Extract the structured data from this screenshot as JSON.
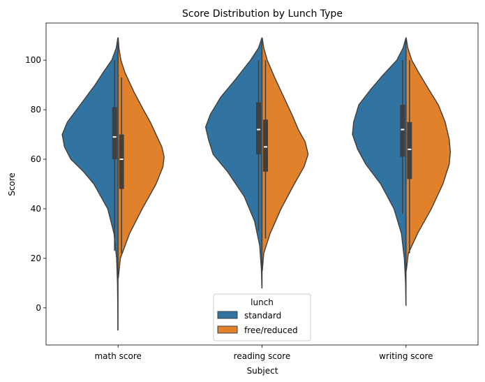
{
  "chart_data": {
    "type": "violin",
    "title": "Score Distribution by Lunch Type",
    "xlabel": "Subject",
    "ylabel": "Score",
    "categories": [
      "math score",
      "reading score",
      "writing score"
    ],
    "ylim": [
      -15,
      115
    ],
    "yticks": [
      0,
      20,
      40,
      60,
      80,
      100
    ],
    "split": true,
    "legend": {
      "title": "lunch",
      "placement": "lower-center"
    },
    "series": [
      {
        "name": "standard",
        "color": "#3274a1",
        "violins": [
          {
            "category": "math score",
            "extent": [
              -9,
              109
            ],
            "q1": 60,
            "median": 69,
            "q3": 81,
            "whisker": [
              23,
              100
            ],
            "profile": [
              [
                -9,
                0.004
              ],
              [
                0,
                0.005
              ],
              [
                10,
                0.01
              ],
              [
                20,
                0.025
              ],
              [
                30,
                0.07
              ],
              [
                40,
                0.18
              ],
              [
                50,
                0.42
              ],
              [
                55,
                0.6
              ],
              [
                60,
                0.82
              ],
              [
                65,
                0.93
              ],
              [
                70,
                0.97
              ],
              [
                75,
                0.88
              ],
              [
                80,
                0.72
              ],
              [
                85,
                0.56
              ],
              [
                90,
                0.4
              ],
              [
                95,
                0.26
              ],
              [
                100,
                0.11
              ],
              [
                105,
                0.03
              ],
              [
                109,
                0.004
              ]
            ]
          },
          {
            "category": "reading score",
            "extent": [
              8,
              109
            ],
            "q1": 62,
            "median": 72,
            "q3": 83,
            "whisker": [
              31,
              100
            ],
            "profile": [
              [
                8,
                0.003
              ],
              [
                15,
                0.01
              ],
              [
                25,
                0.04
              ],
              [
                35,
                0.13
              ],
              [
                45,
                0.31
              ],
              [
                55,
                0.6
              ],
              [
                62,
                0.85
              ],
              [
                68,
                0.93
              ],
              [
                73,
                0.98
              ],
              [
                78,
                0.9
              ],
              [
                85,
                0.72
              ],
              [
                92,
                0.47
              ],
              [
                100,
                0.2
              ],
              [
                105,
                0.06
              ],
              [
                109,
                0.003
              ]
            ]
          },
          {
            "category": "writing score",
            "extent": [
              1,
              109
            ],
            "q1": 61,
            "median": 72,
            "q3": 82,
            "whisker": [
              38,
              100
            ],
            "profile": [
              [
                1,
                0.002
              ],
              [
                10,
                0.008
              ],
              [
                20,
                0.03
              ],
              [
                30,
                0.08
              ],
              [
                40,
                0.21
              ],
              [
                50,
                0.44
              ],
              [
                58,
                0.7
              ],
              [
                64,
                0.84
              ],
              [
                70,
                0.93
              ],
              [
                75,
                0.91
              ],
              [
                82,
                0.82
              ],
              [
                88,
                0.62
              ],
              [
                94,
                0.4
              ],
              [
                100,
                0.16
              ],
              [
                105,
                0.05
              ],
              [
                109,
                0.002
              ]
            ]
          }
        ]
      },
      {
        "name": "free/reduced",
        "color": "#e1812c",
        "violins": [
          {
            "category": "math score",
            "extent": [
              12,
              109
            ],
            "q1": 48,
            "median": 60,
            "q3": 70,
            "whisker": [
              22,
              93
            ],
            "profile": [
              [
                12,
                0.005
              ],
              [
                20,
                0.04
              ],
              [
                30,
                0.2
              ],
              [
                40,
                0.42
              ],
              [
                50,
                0.66
              ],
              [
                57,
                0.78
              ],
              [
                61,
                0.8
              ],
              [
                65,
                0.76
              ],
              [
                70,
                0.66
              ],
              [
                75,
                0.56
              ],
              [
                80,
                0.44
              ],
              [
                87,
                0.28
              ],
              [
                95,
                0.12
              ],
              [
                100,
                0.05
              ],
              [
                105,
                0.015
              ],
              [
                109,
                0.003
              ]
            ]
          },
          {
            "category": "reading score",
            "extent": [
              15,
              109
            ],
            "q1": 55,
            "median": 65,
            "q3": 76,
            "whisker": [
              28,
              100
            ],
            "profile": [
              [
                15,
                0.005
              ],
              [
                22,
                0.03
              ],
              [
                30,
                0.14
              ],
              [
                40,
                0.33
              ],
              [
                50,
                0.56
              ],
              [
                57,
                0.73
              ],
              [
                62,
                0.8
              ],
              [
                67,
                0.75
              ],
              [
                72,
                0.63
              ],
              [
                78,
                0.52
              ],
              [
                85,
                0.38
              ],
              [
                93,
                0.22
              ],
              [
                100,
                0.09
              ],
              [
                105,
                0.03
              ],
              [
                109,
                0.003
              ]
            ]
          },
          {
            "category": "writing score",
            "extent": [
              15,
              109
            ],
            "q1": 52,
            "median": 64,
            "q3": 75,
            "whisker": [
              22,
              100
            ],
            "profile": [
              [
                15,
                0.005
              ],
              [
                22,
                0.04
              ],
              [
                30,
                0.2
              ],
              [
                40,
                0.44
              ],
              [
                50,
                0.64
              ],
              [
                58,
                0.75
              ],
              [
                63,
                0.77
              ],
              [
                68,
                0.75
              ],
              [
                75,
                0.68
              ],
              [
                82,
                0.56
              ],
              [
                88,
                0.4
              ],
              [
                95,
                0.22
              ],
              [
                100,
                0.1
              ],
              [
                105,
                0.03
              ],
              [
                109,
                0.003
              ]
            ]
          }
        ]
      }
    ]
  }
}
